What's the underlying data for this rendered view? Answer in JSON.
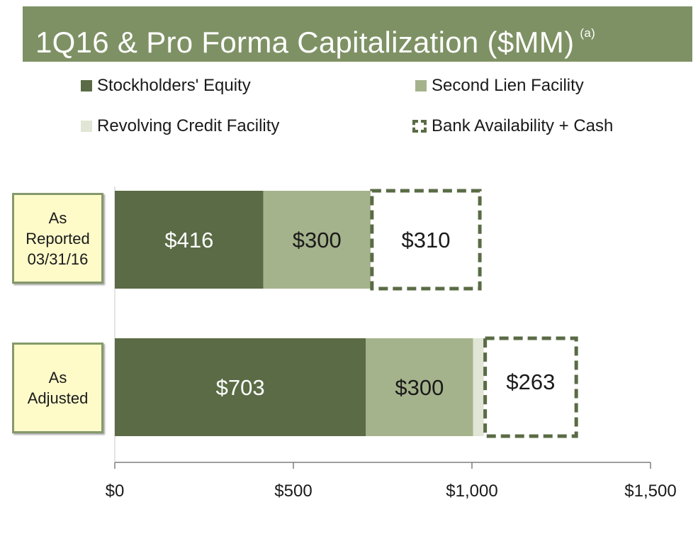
{
  "title": {
    "text": "1Q16 & Pro Forma Capitalization ($MM)",
    "footnote": "(a)",
    "bg_color": "#7e9164"
  },
  "legend": [
    {
      "label": "Stockholders' Equity",
      "color": "#5a6b45",
      "style": "solid"
    },
    {
      "label": "Second Lien Facility",
      "color": "#a5b38c",
      "style": "solid"
    },
    {
      "label": "Revolving Credit Facility",
      "color": "#e1e5d5",
      "style": "solid"
    },
    {
      "label": "Bank Availability + Cash",
      "color": "#5a6b45",
      "style": "dashed"
    }
  ],
  "categories": [
    {
      "label": "As\nReported\n03/31/16"
    },
    {
      "label": "As\nAdjusted"
    }
  ],
  "chart_data": {
    "type": "bar",
    "orientation": "horizontal",
    "stacked": true,
    "title": "1Q16 & Pro Forma Capitalization ($MM)",
    "categories": [
      "As Reported 03/31/16",
      "As Adjusted"
    ],
    "series": [
      {
        "name": "Stockholders' Equity",
        "values": [
          416,
          703
        ],
        "labels": [
          "$416",
          "$703"
        ],
        "color": "#5a6b45",
        "label_color": "#ffffff"
      },
      {
        "name": "Second Lien Facility",
        "values": [
          300,
          300
        ],
        "labels": [
          "$300",
          "$300"
        ],
        "color": "#a5b38c",
        "label_color": "#1a1a1a"
      },
      {
        "name": "Revolving Credit Facility",
        "values": [
          0,
          30
        ],
        "labels": [
          "",
          ""
        ],
        "color": "#e1e5d5",
        "label_color": "#1a1a1a"
      },
      {
        "name": "Bank Availability + Cash",
        "values": [
          310,
          263
        ],
        "labels": [
          "$310",
          "$263"
        ],
        "color": "#ffffff",
        "border_color": "#5a6b45",
        "dashed": true,
        "label_color": "#1a1a1a"
      }
    ],
    "xlim": [
      0,
      1500
    ],
    "xticks": [
      0,
      500,
      1000,
      1500
    ],
    "xtick_labels": [
      "$0",
      "$500",
      "$1,000",
      "$1,500"
    ],
    "grid": false,
    "legend_position": "top"
  }
}
